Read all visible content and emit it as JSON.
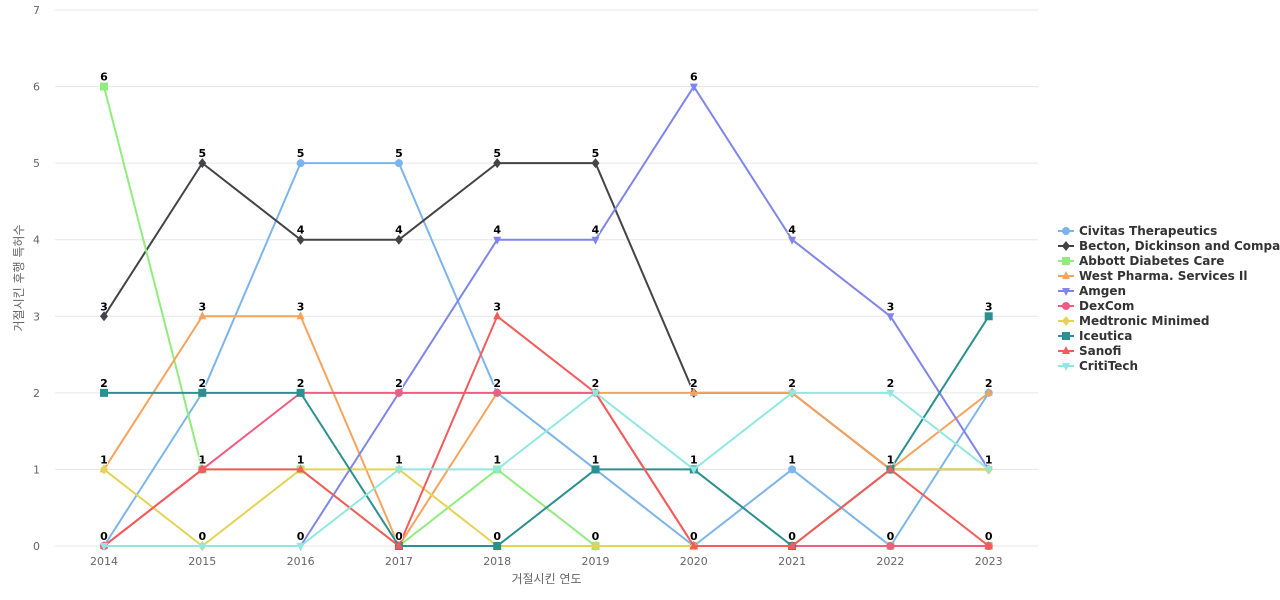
{
  "chart_data": {
    "type": "line",
    "title": "",
    "xlabel": "거절시킨 연도",
    "ylabel": "거절시킨 후행 특허수",
    "x": [
      "2014",
      "2015",
      "2016",
      "2017",
      "2018",
      "2019",
      "2020",
      "2021",
      "2022",
      "2023"
    ],
    "ylim": [
      0,
      7
    ],
    "yticks": [
      0,
      1,
      2,
      3,
      4,
      5,
      6,
      7
    ],
    "grid": true,
    "legend_position": "right",
    "data_labels": [
      {
        "x": "2014",
        "labels": [
          "6",
          "3",
          "2",
          "1",
          "0"
        ]
      },
      {
        "x": "2015",
        "labels": [
          "5",
          "3",
          "2",
          "1",
          "0"
        ]
      },
      {
        "x": "2016",
        "labels": [
          "5",
          "4",
          "3",
          "2",
          "1",
          "0"
        ]
      },
      {
        "x": "2017",
        "labels": [
          "5",
          "4",
          "2",
          "1",
          "0"
        ]
      },
      {
        "x": "2018",
        "labels": [
          "5",
          "4",
          "3",
          "2",
          "1",
          "0"
        ]
      },
      {
        "x": "2019",
        "labels": [
          "5",
          "4",
          "2",
          "1",
          "0"
        ]
      },
      {
        "x": "2020",
        "labels": [
          "6",
          "2",
          "1",
          "0"
        ]
      },
      {
        "x": "2021",
        "labels": [
          "4",
          "2",
          "1",
          "0"
        ]
      },
      {
        "x": "2022",
        "labels": [
          "3",
          "2",
          "1",
          "0"
        ]
      },
      {
        "x": "2023",
        "labels": [
          "3",
          "2",
          "1",
          "0"
        ]
      }
    ],
    "series": [
      {
        "name": "Civitas Therapeutics",
        "color": "#7cb5ec",
        "marker": "circle",
        "values": [
          0,
          2,
          5,
          5,
          2,
          1,
          0,
          1,
          0,
          2
        ]
      },
      {
        "name": "Becton, Dickinson and Compa...",
        "color": "#434348",
        "marker": "diamond",
        "values": [
          3,
          5,
          4,
          4,
          5,
          5,
          2,
          2,
          1,
          1
        ]
      },
      {
        "name": "Abbott Diabetes Care",
        "color": "#90ed7d",
        "marker": "square",
        "values": [
          6,
          1,
          1,
          0,
          1,
          0,
          0,
          0,
          0,
          0
        ]
      },
      {
        "name": "West Pharma. Services Il",
        "color": "#f7a35c",
        "marker": "triangle",
        "values": [
          1,
          3,
          3,
          0,
          2,
          2,
          2,
          2,
          1,
          2
        ]
      },
      {
        "name": "Amgen",
        "color": "#8085e9",
        "marker": "triangle-down",
        "values": [
          0,
          0,
          0,
          2,
          4,
          4,
          6,
          4,
          3,
          1
        ]
      },
      {
        "name": "DexCom",
        "color": "#f15c80",
        "marker": "circle",
        "values": [
          0,
          1,
          2,
          2,
          2,
          2,
          0,
          0,
          0,
          0
        ]
      },
      {
        "name": "Medtronic Minimed",
        "color": "#e4d354",
        "marker": "diamond",
        "values": [
          1,
          0,
          1,
          1,
          0,
          0,
          0,
          0,
          1,
          1
        ]
      },
      {
        "name": "Iceutica",
        "color": "#2b908f",
        "marker": "square",
        "values": [
          2,
          2,
          2,
          0,
          0,
          1,
          1,
          0,
          1,
          3
        ]
      },
      {
        "name": "Sanofi",
        "color": "#f45b5b",
        "marker": "triangle",
        "values": [
          0,
          1,
          1,
          0,
          3,
          2,
          0,
          0,
          1,
          0
        ]
      },
      {
        "name": "CritiTech",
        "color": "#91e8e1",
        "marker": "triangle-down",
        "values": [
          0,
          0,
          0,
          1,
          1,
          2,
          1,
          2,
          2,
          1
        ]
      }
    ]
  }
}
